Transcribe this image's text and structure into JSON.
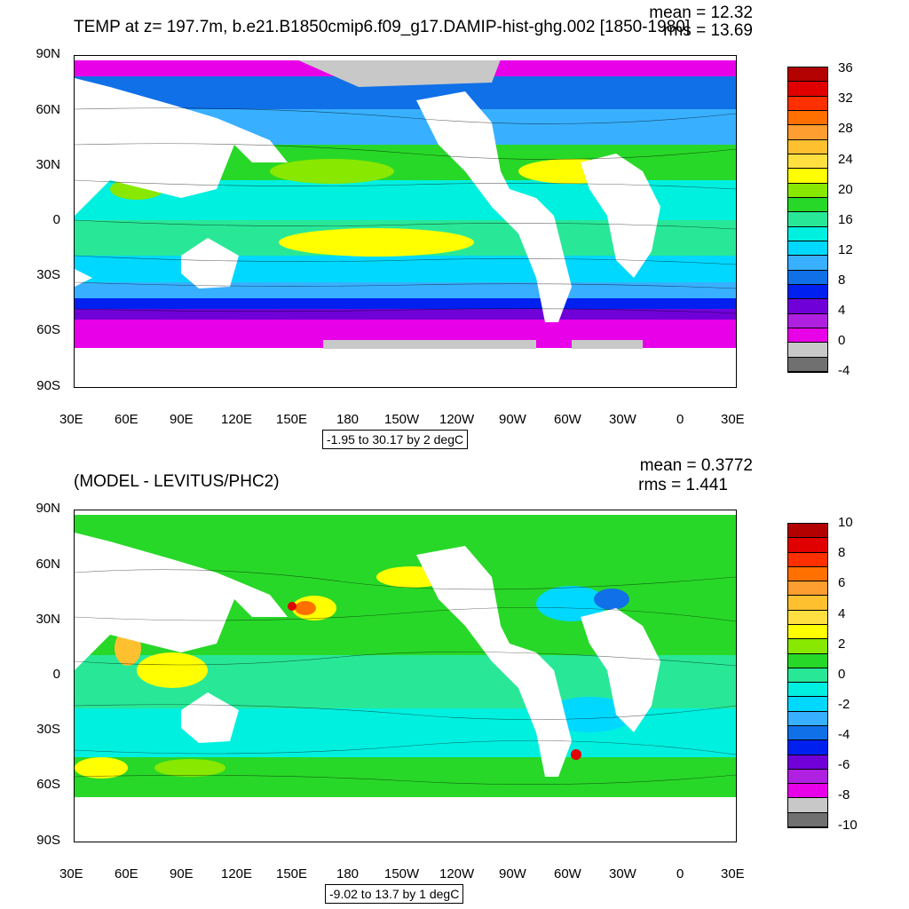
{
  "top": {
    "title": "TEMP at z= 197.7m, b.e21.B1850cmip6.f09_g17.DAMIP-hist-ghg.002 [1850-1980]",
    "mean": "mean = 12.32",
    "rms": "rms = 13.69",
    "info": "-1.95 to 30.17 by 2 degC",
    "colorbar_labels": [
      "36",
      "32",
      "28",
      "24",
      "20",
      "16",
      "12",
      "8",
      "4",
      "0",
      "-4"
    ],
    "colorbar_colors": [
      "#b30000",
      "#e00000",
      "#ff3000",
      "#ff7000",
      "#ff9e30",
      "#ffc030",
      "#ffe040",
      "#ffff00",
      "#88e800",
      "#28d828",
      "#28e898",
      "#00f0e0",
      "#00d8ff",
      "#38b0ff",
      "#1070e8",
      "#0020f0",
      "#7000d8",
      "#b020e0",
      "#e800e8",
      "#c8c8c8",
      "#707070"
    ]
  },
  "bottom": {
    "title": "(MODEL - LEVITUS/PHC2)",
    "mean": "mean = 0.3772",
    "rms": "rms = 1.441",
    "info": "-9.02 to 13.7 by 1 degC",
    "colorbar_labels": [
      "10",
      "8",
      "6",
      "4",
      "2",
      "0",
      "-2",
      "-4",
      "-6",
      "-8",
      "-10"
    ],
    "colorbar_colors": [
      "#b30000",
      "#e00000",
      "#ff3000",
      "#ff7000",
      "#ff9e30",
      "#ffc030",
      "#ffe040",
      "#ffff00",
      "#88e800",
      "#28d828",
      "#28e898",
      "#00f0e0",
      "#00d8ff",
      "#38b0ff",
      "#1070e8",
      "#0020f0",
      "#7000d8",
      "#b020e0",
      "#e800e8",
      "#c8c8c8",
      "#707070"
    ]
  },
  "lat_labels": [
    "90N",
    "60N",
    "30N",
    "0",
    "30S",
    "60S",
    "90S"
  ],
  "lon_labels": [
    "30E",
    "60E",
    "90E",
    "120E",
    "150E",
    "180",
    "150W",
    "120W",
    "90W",
    "60W",
    "30W",
    "0",
    "30E"
  ]
}
